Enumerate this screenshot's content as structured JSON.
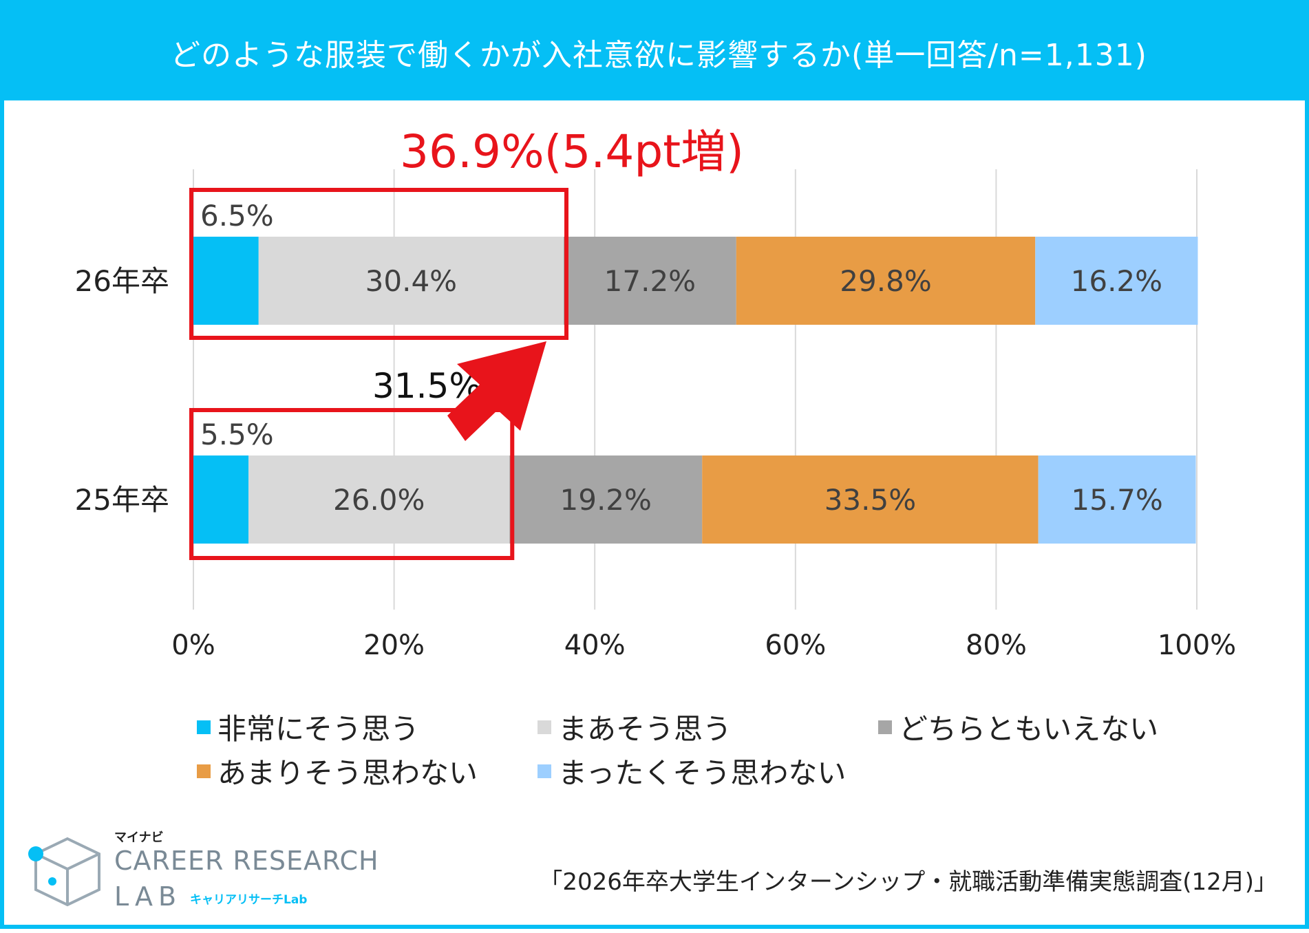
{
  "header": {
    "title": "どのような服装で働くかが入社意欲に影響するか(単一回答/n=1,131)"
  },
  "colors": {
    "header_bg": "#05BFF5",
    "highlight": "#E8141B",
    "series": [
      "#05BFF5",
      "#D9D9D9",
      "#A6A6A6",
      "#E89C45",
      "#9DCFFF"
    ]
  },
  "chart_data": {
    "type": "bar",
    "orientation": "horizontal",
    "stacked": true,
    "categories": [
      "26年卒",
      "25年卒"
    ],
    "series": [
      {
        "name": "非常にそう思う",
        "values": [
          6.5,
          5.5
        ],
        "labels": [
          "6.5%",
          "5.5%"
        ]
      },
      {
        "name": "まあそう思う",
        "values": [
          30.4,
          26.0
        ],
        "labels": [
          "30.4%",
          "26.0%"
        ]
      },
      {
        "name": "どちらともいえない",
        "values": [
          17.2,
          19.2
        ],
        "labels": [
          "17.2%",
          "19.2%"
        ]
      },
      {
        "name": "あまりそう思わない",
        "values": [
          29.8,
          33.5
        ],
        "labels": [
          "29.8%",
          "33.5%"
        ]
      },
      {
        "name": "まったくそう思わない",
        "values": [
          16.2,
          15.7
        ],
        "labels": [
          "16.2%",
          "15.7%"
        ]
      }
    ],
    "xlim": [
      0,
      100
    ],
    "x_ticks": [
      "0%",
      "20%",
      "40%",
      "60%",
      "80%",
      "100%"
    ],
    "grid": true,
    "legend": "bottom",
    "annotations": {
      "highlight_26": "36.9%(5.4pt増)",
      "highlight_26_value": 36.9,
      "highlight_25": "31.5%",
      "highlight_25_value": 31.5
    }
  },
  "footer": {
    "logo_mynavi": "マイナビ",
    "logo_career": "CAREER RESEARCH",
    "logo_lab": "LAB",
    "logo_lab_jp": "キャリアリサーチLab",
    "source": "「2026年卒大学生インターンシップ・就職活動準備実態調査(12月)」"
  }
}
